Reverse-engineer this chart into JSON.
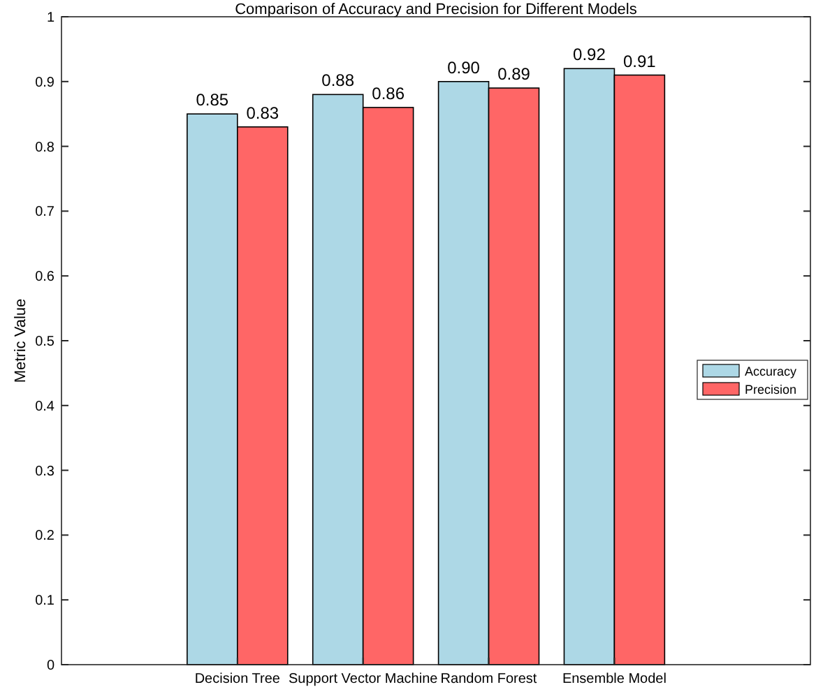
{
  "chart_data": {
    "type": "bar",
    "title": "Comparison of Accuracy and Precision for Different Models",
    "ylabel": "Metric Value",
    "categories": [
      "Decision Tree",
      "Support Vector Machine",
      "Random Forest",
      "Ensemble Model"
    ],
    "series": [
      {
        "name": "Accuracy",
        "color": "#add8e6",
        "values": [
          0.85,
          0.88,
          0.9,
          0.92
        ],
        "value_labels": [
          "0.85",
          "0.88",
          "0.90",
          "0.92"
        ]
      },
      {
        "name": "Precision",
        "color": "#ff6666",
        "values": [
          0.83,
          0.86,
          0.89,
          0.91
        ],
        "value_labels": [
          "0.83",
          "0.86",
          "0.89",
          "0.91"
        ]
      }
    ],
    "ylim": [
      0,
      1
    ],
    "yticks": [
      0,
      0.1,
      0.2,
      0.3,
      0.4,
      0.5,
      0.6,
      0.7,
      0.8,
      0.9,
      1
    ],
    "grid": false,
    "legend": "right"
  }
}
